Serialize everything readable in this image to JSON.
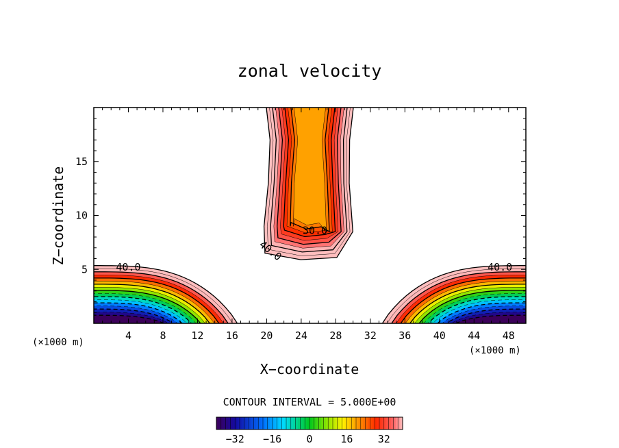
{
  "chart_data": {
    "type": "contour",
    "title": "zonal velocity",
    "xlabel": "X−coordinate",
    "ylabel": "Z−coordinate",
    "x_unit": "(×1000 m)",
    "y_unit": "(×1000 m)",
    "xlim": [
      0,
      50
    ],
    "ylim": [
      0,
      20
    ],
    "x_ticks": [
      4,
      8,
      12,
      16,
      20,
      24,
      28,
      32,
      36,
      40,
      44,
      48
    ],
    "y_ticks": [
      5,
      10,
      15
    ],
    "contour_interval_label": "CONTOUR INTERVAL = 5.000E+00",
    "contour_labels": [
      {
        "text": "40.0",
        "x": 4,
        "z": 5.2
      },
      {
        "text": "40.0",
        "x": 47,
        "z": 5.2
      },
      {
        "text": "30.0",
        "x": 25.6,
        "z": 8.6
      },
      {
        "text": "40.0",
        "x": 20.2,
        "z": 6.8
      }
    ],
    "colorbar": {
      "range": [
        -40,
        40
      ],
      "tick_labels": [
        "−32",
        "−16",
        "0",
        "16",
        "32"
      ],
      "tick_values": [
        -32,
        -16,
        0,
        16,
        32
      ]
    },
    "features": [
      {
        "name": "upper jet",
        "x_range": [
          19.2,
          30.6
        ],
        "z_range": [
          6,
          20
        ],
        "core_value": 20
      },
      {
        "name": "lower-left jet",
        "x_range": [
          0,
          16.8
        ],
        "z_range": [
          0,
          5.3
        ],
        "min_value": -40
      },
      {
        "name": "lower-right jet",
        "x_range": [
          33.6,
          50
        ],
        "z_range": [
          0,
          5.3
        ],
        "min_value": -40
      }
    ]
  }
}
